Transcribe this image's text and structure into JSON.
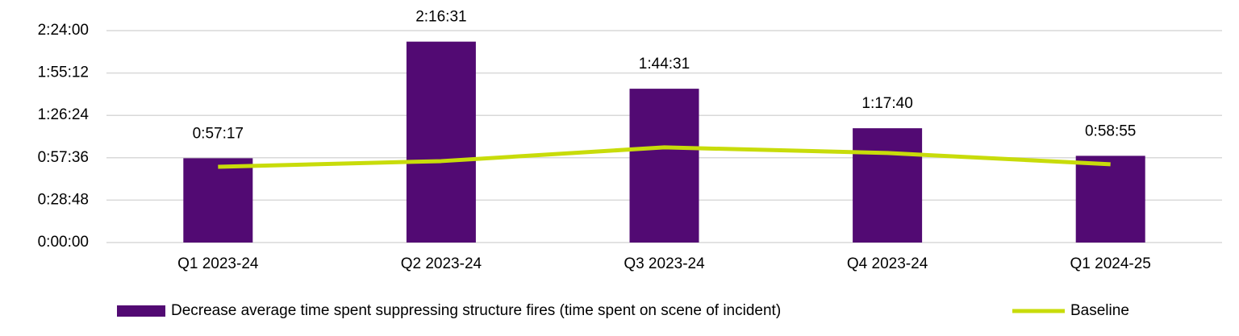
{
  "chart_data": {
    "type": "bar",
    "categories": [
      "Q1 2023-24",
      "Q2 2023-24",
      "Q3 2023-24",
      "Q4 2023-24",
      "Q1 2024-25"
    ],
    "series": [
      {
        "name": "Decrease average time spent suppressing structure fires (time spent on scene of incident)",
        "type": "bar",
        "color": "#520a73",
        "values": [
          3437,
          8191,
          6271,
          4660,
          3535
        ],
        "value_labels": [
          "0:57:17",
          "2:16:31",
          "1:44:31",
          "1:17:40",
          "0:58:55"
        ]
      },
      {
        "name": "Baseline",
        "type": "line",
        "color": "#c8dc0a",
        "values": [
          3090,
          3320,
          3880,
          3650,
          3190
        ]
      }
    ],
    "ylim": [
      0,
      8640
    ],
    "yticks": [
      {
        "value": 0,
        "label": "0:00:00"
      },
      {
        "value": 1728,
        "label": "0:28:48"
      },
      {
        "value": 3456,
        "label": "0:57:36"
      },
      {
        "value": 5184,
        "label": "1:26:24"
      },
      {
        "value": 6912,
        "label": "1:55:12"
      },
      {
        "value": 8640,
        "label": "2:24:00"
      }
    ],
    "grid": true,
    "legend": "bottom"
  }
}
